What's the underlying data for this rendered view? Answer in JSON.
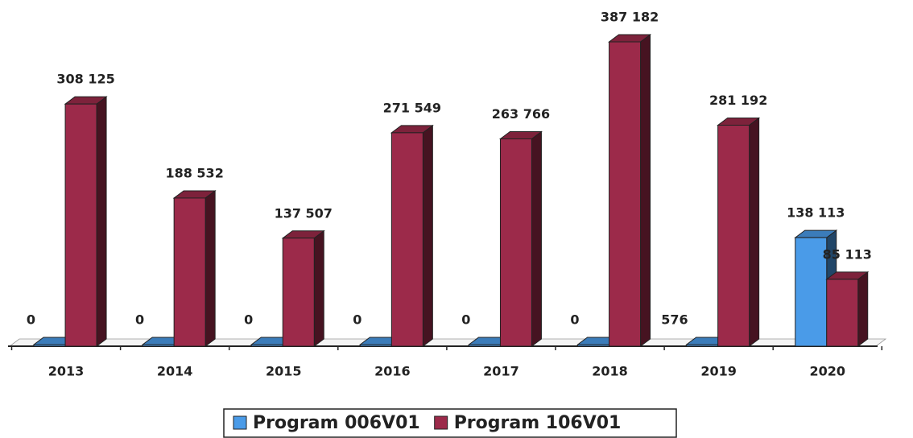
{
  "chart_data": {
    "type": "bar3d",
    "categories": [
      "2013",
      "2014",
      "2015",
      "2016",
      "2017",
      "2018",
      "2019",
      "2020"
    ],
    "series": [
      {
        "name": "Program 006V01",
        "color": "#4a9be8",
        "values": [
          0,
          0,
          0,
          0,
          0,
          0,
          576,
          138113
        ],
        "value_labels": [
          "0",
          "0",
          "0",
          "0",
          "0",
          "0",
          "576",
          "138 113"
        ]
      },
      {
        "name": "Program 106V01",
        "color": "#9c2a4a",
        "values": [
          308125,
          188532,
          137507,
          271549,
          263766,
          387182,
          281192,
          85113
        ],
        "value_labels": [
          "308 125",
          "188 532",
          "137 507",
          "271 549",
          "263 766",
          "387 182",
          "281 192",
          "85 113"
        ]
      }
    ],
    "legend": "bottom"
  }
}
